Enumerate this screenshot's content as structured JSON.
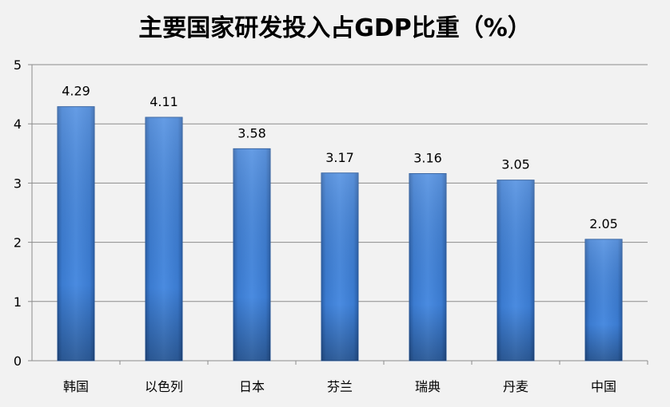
{
  "chart_data": {
    "type": "bar",
    "title": "主要国家研发投入占GDP比重（%）",
    "categories": [
      "韩国",
      "以色列",
      "日本",
      "芬兰",
      "瑞典",
      "丹麦",
      "中国"
    ],
    "values": [
      4.29,
      4.11,
      3.58,
      3.17,
      3.16,
      3.05,
      2.05
    ],
    "xlabel": "",
    "ylabel": "",
    "ylim": [
      0,
      5
    ],
    "yticks": [
      0,
      1,
      2,
      3,
      4,
      5
    ],
    "grid": true,
    "bar_color": "#3c7fd6"
  }
}
